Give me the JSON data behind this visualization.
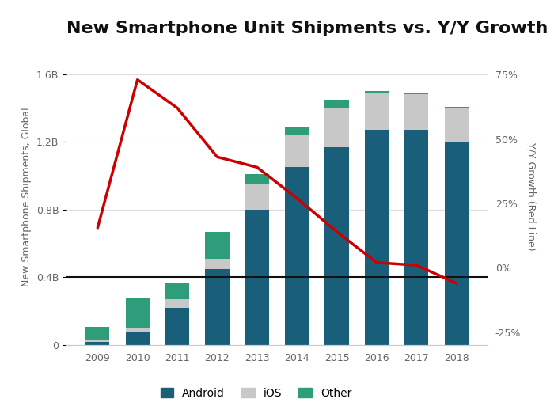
{
  "years": [
    2009,
    2010,
    2011,
    2012,
    2013,
    2014,
    2015,
    2016,
    2017,
    2018
  ],
  "android": [
    0.02,
    0.075,
    0.22,
    0.45,
    0.8,
    1.05,
    1.17,
    1.27,
    1.27,
    1.2
  ],
  "ios": [
    0.015,
    0.03,
    0.05,
    0.06,
    0.15,
    0.19,
    0.23,
    0.22,
    0.21,
    0.2
  ],
  "other": [
    0.075,
    0.175,
    0.1,
    0.16,
    0.06,
    0.05,
    0.05,
    0.01,
    0.005,
    0.005
  ],
  "yoy_growth": [
    0.155,
    0.73,
    0.62,
    0.43,
    0.39,
    0.27,
    0.14,
    0.02,
    0.01,
    -0.06
  ],
  "android_color": "#1a5f7a",
  "ios_color": "#c8c8c8",
  "other_color": "#2e9e7a",
  "line_color": "#cc0000",
  "hline_color": "#111111",
  "title": "New Smartphone Unit Shipments vs. Y/Y Growth",
  "ylabel_left": "New Smartphone Shipments, Global",
  "ylabel_right": "Y/Y Growth (Red Line)",
  "ylim_left": [
    0,
    1.75
  ],
  "ylim_right": [
    -0.3,
    0.85
  ],
  "yticks_left": [
    0,
    0.4,
    0.8,
    1.2,
    1.6
  ],
  "yticks_right": [
    -0.25,
    0.0,
    0.25,
    0.5,
    0.75
  ],
  "ytick_labels_left": [
    "0",
    "0.4B",
    "0.8B",
    "1.2B",
    "1.6B"
  ],
  "ytick_labels_right": [
    "-25%",
    "0%",
    "25%",
    "50%",
    "75%"
  ],
  "background_color": "#ffffff",
  "grid_color": "#dddddd",
  "title_fontsize": 16,
  "axis_label_fontsize": 9,
  "tick_fontsize": 9,
  "bar_width": 0.6
}
